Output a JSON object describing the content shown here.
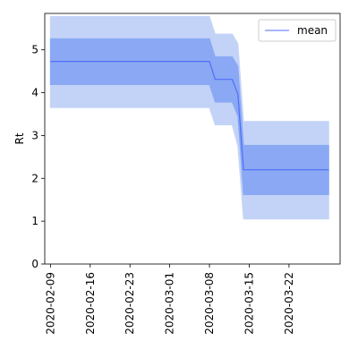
{
  "chart_data": {
    "type": "line",
    "title": "",
    "xlabel": "",
    "ylabel": "Rt",
    "xlim": [
      "2020-02-08",
      "2020-03-31"
    ],
    "ylim": [
      0,
      5.85
    ],
    "x_ticks": [
      "2020-02-09",
      "2020-02-16",
      "2020-02-23",
      "2020-03-01",
      "2020-03-08",
      "2020-03-15",
      "2020-03-22"
    ],
    "y_ticks": [
      0,
      1,
      2,
      3,
      4,
      5
    ],
    "grid": false,
    "legend": {
      "position": "top-right",
      "entries": [
        "mean"
      ]
    },
    "colors": {
      "mean_line": "#4f6ef7",
      "inner_band": "#8aa8f4",
      "outer_band": "#c3d3f7",
      "axis": "#000000"
    },
    "x": [
      "2020-02-09",
      "2020-03-08",
      "2020-03-09",
      "2020-03-12",
      "2020-03-13",
      "2020-03-14",
      "2020-03-15",
      "2020-03-29"
    ],
    "series": [
      {
        "name": "mean",
        "values": [
          4.73,
          4.73,
          4.31,
          4.31,
          3.97,
          2.2,
          2.2,
          2.2
        ]
      }
    ],
    "bands": [
      {
        "level": "outer",
        "lower": [
          3.65,
          3.65,
          3.25,
          3.25,
          2.75,
          1.05,
          1.05,
          1.05
        ],
        "upper": [
          5.78,
          5.78,
          5.37,
          5.37,
          5.15,
          3.33,
          3.33,
          3.33
        ]
      },
      {
        "level": "inner",
        "lower": [
          4.19,
          4.19,
          3.78,
          3.78,
          3.45,
          1.62,
          1.62,
          1.62
        ],
        "upper": [
          5.26,
          5.26,
          4.84,
          4.84,
          4.62,
          2.77,
          2.77,
          2.77
        ]
      }
    ]
  }
}
